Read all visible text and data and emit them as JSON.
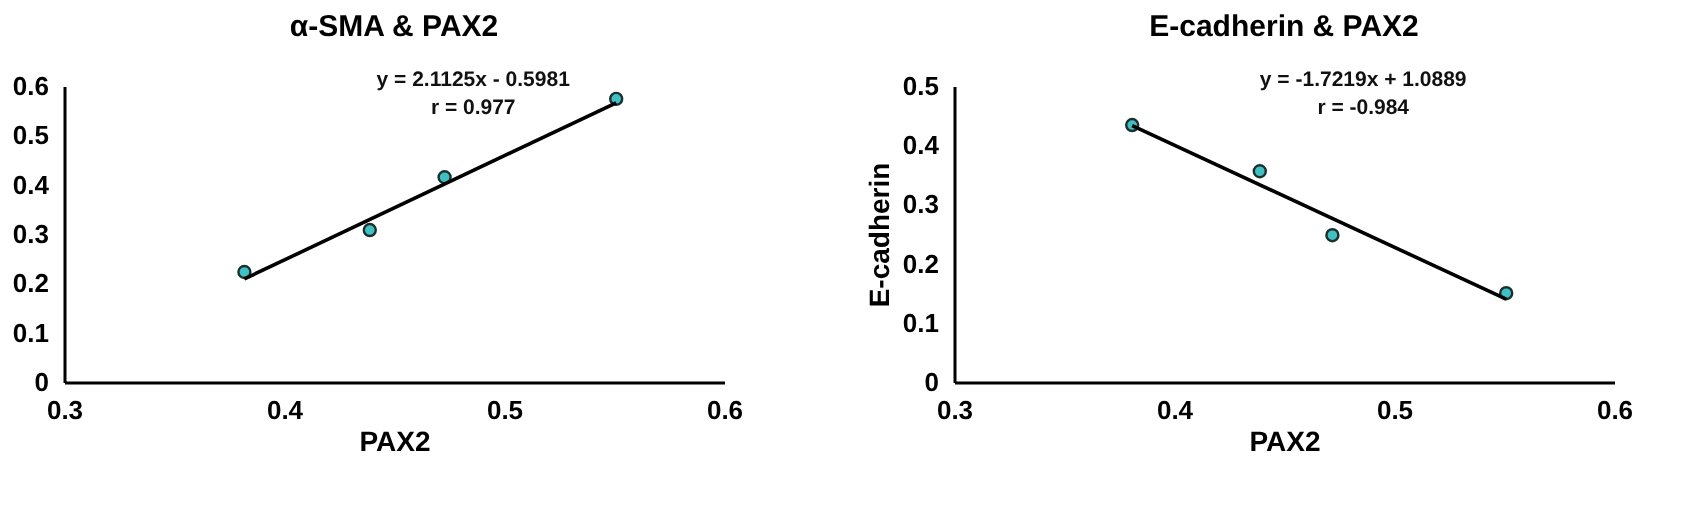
{
  "chart_data": [
    {
      "type": "scatter",
      "title": "α-SMA & PAX2",
      "xlabel": "PAX2",
      "xlim": [
        0.3,
        0.6
      ],
      "xticks": [
        0.3,
        0.4,
        0.5,
        0.6
      ],
      "ylim": [
        0,
        0.6
      ],
      "yticks": [
        0,
        0.1,
        0.2,
        0.3,
        0.4,
        0.5,
        0.6
      ],
      "grid": false,
      "marker": "circle",
      "annotations": [
        "y = 2.1125x - 0.5981",
        "r = 0.977"
      ],
      "series": [
        {
          "type": "scatter",
          "color": "#40c0c0",
          "x": [
            0.382,
            0.439,
            0.473,
            0.551
          ],
          "values": [
            0.223,
            0.308,
            0.415,
            0.574
          ]
        },
        {
          "type": "line",
          "color": "#000000",
          "marker": "none",
          "line_style": "solid",
          "x": [
            0.382,
            0.551
          ],
          "values": [
            0.209,
            0.566
          ]
        }
      ]
    },
    {
      "type": "scatter",
      "title": "E-cadherin & PAX2",
      "xlabel": "PAX2",
      "ylabel": "E-cadherin",
      "xlim": [
        0.3,
        0.6
      ],
      "xticks": [
        0.3,
        0.4,
        0.5,
        0.6
      ],
      "ylim": [
        0,
        0.5
      ],
      "yticks": [
        0,
        0.1,
        0.2,
        0.3,
        0.4,
        0.5
      ],
      "grid": false,
      "marker": "circle",
      "annotations": [
        "y = -1.7219x + 1.0889",
        "r = -0.984"
      ],
      "series": [
        {
          "type": "scatter",
          "color": "#40c0c0",
          "x": [
            0.381,
            0.439,
            0.472,
            0.551
          ],
          "values": [
            0.434,
            0.356,
            0.248,
            0.15
          ]
        },
        {
          "type": "line",
          "color": "#000000",
          "marker": "none",
          "line_style": "solid",
          "x": [
            0.381,
            0.551
          ],
          "values": [
            0.433,
            0.14
          ]
        }
      ]
    }
  ]
}
